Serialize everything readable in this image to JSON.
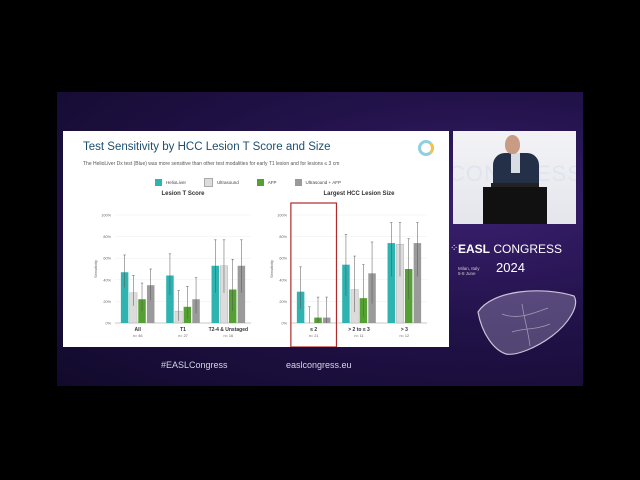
{
  "slide": {
    "title": "Test Sensitivity by HCC Lesion T Score and Size",
    "subtitle": "The HelioLiver Dx test (Blue) was more sensitive than other test modalities for early T1 lesion and for lesions ≤ 3 cm",
    "legend": [
      {
        "label": "HelioLiver",
        "color": "#2fb3b0"
      },
      {
        "label": "Ultrasound",
        "color": "#dcdcdc"
      },
      {
        "label": "AFP",
        "color": "#55a032"
      },
      {
        "label": "Ultrasound + AFP",
        "color": "#9a9a9a"
      }
    ]
  },
  "chart_data": [
    {
      "type": "bar",
      "title": "Lesion T Score",
      "ylabel": "Sensitivity",
      "ylim": [
        0,
        100
      ],
      "yticks": [
        "0%",
        "20%",
        "40%",
        "60%",
        "80%",
        "100%"
      ],
      "categories": [
        "All",
        "T1",
        "T2-4 & Unstaged"
      ],
      "n_labels": [
        "n= 46",
        "n= 27",
        "n= 16"
      ],
      "series": [
        {
          "name": "HelioLiver",
          "values": [
            47,
            44,
            53
          ],
          "err_low": [
            33,
            26,
            28
          ],
          "err_high": [
            63,
            64,
            77
          ]
        },
        {
          "name": "Ultrasound",
          "values": [
            28,
            11,
            53
          ],
          "err_low": [
            16,
            2,
            28
          ],
          "err_high": [
            44,
            30,
            77
          ]
        },
        {
          "name": "AFP",
          "values": [
            22,
            15,
            31
          ],
          "err_low": [
            11,
            4,
            11
          ],
          "err_high": [
            37,
            34,
            59
          ]
        },
        {
          "name": "Ultrasound + AFP",
          "values": [
            35,
            22,
            53
          ],
          "err_low": [
            21,
            9,
            28
          ],
          "err_high": [
            50,
            42,
            77
          ]
        }
      ]
    },
    {
      "type": "bar",
      "title": "Largest HCC Lesion Size",
      "ylabel": "Sensitivity",
      "ylim": [
        0,
        100
      ],
      "yticks": [
        "0%",
        "20%",
        "40%",
        "60%",
        "80%",
        "100%"
      ],
      "categories": [
        "≤ 2",
        "> 2 to ≤ 3",
        "> 3"
      ],
      "n_labels": [
        "n= 21",
        "n= 11",
        "n= 12"
      ],
      "highlight_category": "≤ 2",
      "series": [
        {
          "name": "HelioLiver",
          "values": [
            29,
            54,
            74
          ],
          "err_low": [
            13,
            25,
            43
          ],
          "err_high": [
            52,
            82,
            93
          ]
        },
        {
          "name": "Ultrasound",
          "values": [
            0,
            31,
            73
          ],
          "err_low": [
            0,
            10,
            43
          ],
          "err_high": [
            15,
            62,
            93
          ]
        },
        {
          "name": "AFP",
          "values": [
            5,
            23,
            50
          ],
          "err_low": [
            0,
            5,
            22
          ],
          "err_high": [
            24,
            54,
            78
          ]
        },
        {
          "name": "Ultrasound + AFP",
          "values": [
            5,
            46,
            74
          ],
          "err_low": [
            0,
            18,
            43
          ],
          "err_high": [
            24,
            75,
            93
          ]
        }
      ]
    }
  ],
  "speaker_backdrop_text": "CONGRESS",
  "branding": {
    "easl": "EASL",
    "congress": "CONGRESS",
    "year": "2024",
    "location": "Milan, Italy",
    "dates": "5-8 June"
  },
  "footer": {
    "hashtag": "#EASLCongress",
    "url": "easlcongress.eu"
  }
}
